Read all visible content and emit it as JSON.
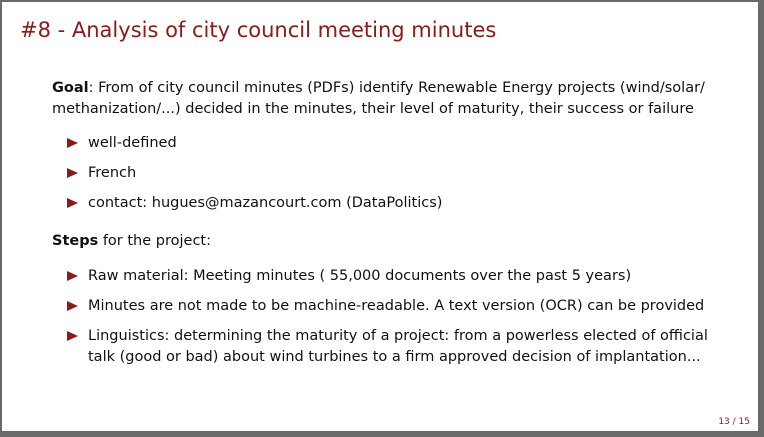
{
  "slide": {
    "title": "#8 - Analysis of city council meeting minutes",
    "goal": {
      "label": "Goal",
      "text": ": From of city council minutes (PDFs) identify Renewable Energy projects (wind/solar/ methanization/...) decided in the minutes, their level of maturity, their success or failure"
    },
    "goal_items": [
      "well-defined",
      "French",
      "contact: hugues@mazancourt.com (DataPolitics)"
    ],
    "steps": {
      "label": "Steps",
      "text": " for the project:"
    },
    "steps_items": [
      "Raw material: Meeting minutes ( 55,000 documents over the past 5 years)",
      "Minutes are not made to be machine-readable. A text version (OCR) can be provided",
      "Linguistics: determining the maturity of a project: from a powerless elected of official talk (good or bad) about wind turbines to a firm approved decision of implantation..."
    ],
    "page_number": "13 / 15"
  },
  "colors": {
    "accent": "#8b1a1a",
    "text": "#111111",
    "background": "#ffffff",
    "frame": "#6a6a6a"
  }
}
